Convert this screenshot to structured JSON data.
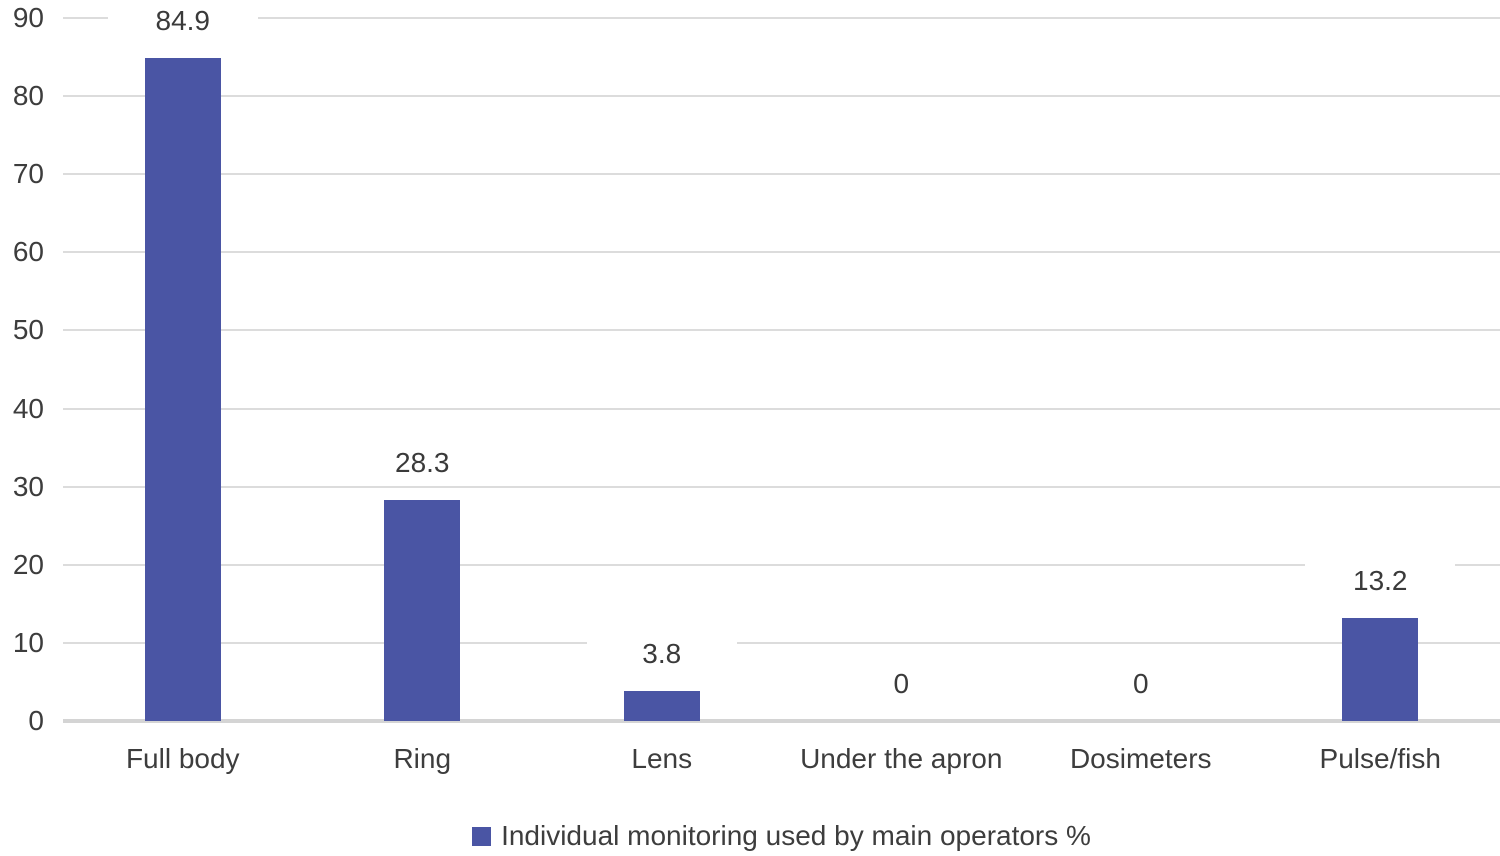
{
  "chart_data": {
    "type": "bar",
    "title": "",
    "xlabel": "",
    "ylabel": "",
    "categories": [
      "Full body",
      "Ring",
      "Lens",
      "Under the apron",
      "Dosimeters",
      "Pulse/fish"
    ],
    "values": [
      84.9,
      28.3,
      3.8,
      0,
      0,
      13.2
    ],
    "value_labels": [
      "84.9",
      "28.3",
      "3.8",
      "0",
      "0",
      "13.2"
    ],
    "legend": "Individual monitoring used by main operators %",
    "legend_position": "bottom",
    "ylim": [
      0,
      90
    ],
    "yticks": [
      0,
      10,
      20,
      30,
      40,
      50,
      60,
      70,
      80,
      90
    ],
    "grid": true,
    "colors": {
      "bar": "#4A55A4",
      "text": "#3D3D3D",
      "gridline": "#DCDCDC",
      "baseline": "#D4D4D4",
      "background": "#FFFFFF"
    }
  }
}
